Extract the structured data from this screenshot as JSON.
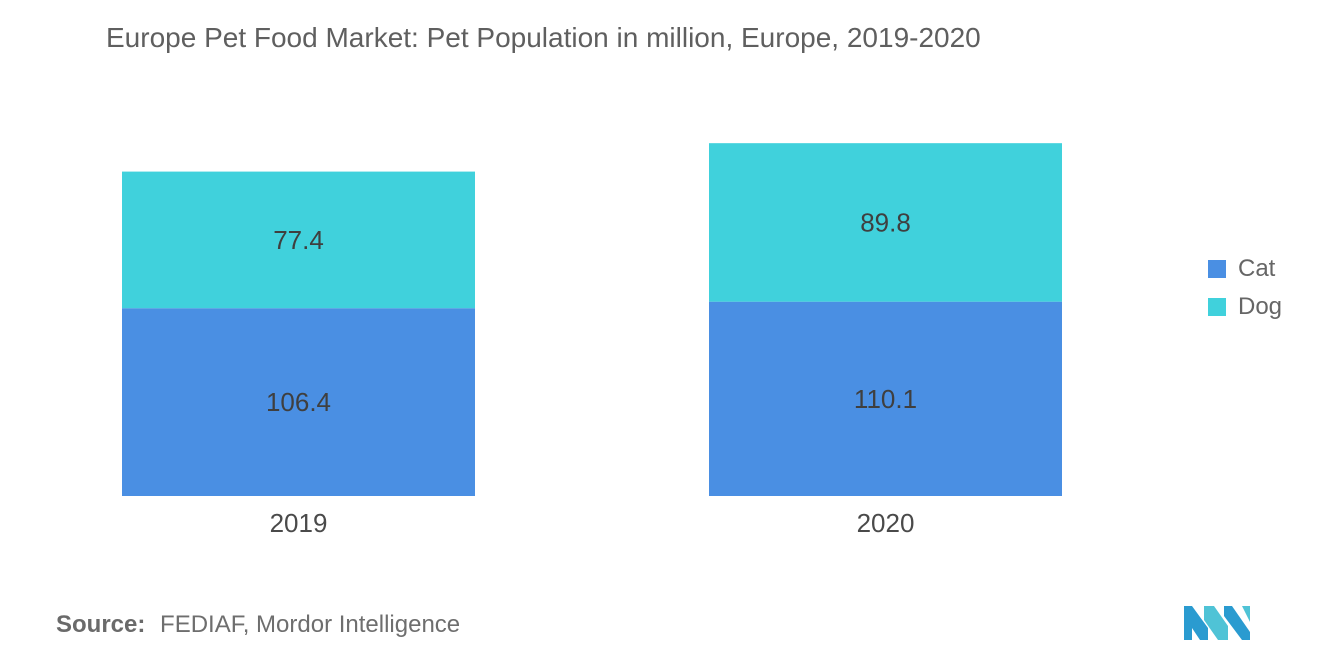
{
  "chart_data": {
    "type": "bar",
    "stacked": true,
    "title": "Europe Pet Food Market: Pet Population in million, Europe, 2019-2020",
    "categories": [
      "2019",
      "2020"
    ],
    "series": [
      {
        "name": "Cat",
        "values": [
          106.4,
          110.1
        ],
        "color": "#4a8fe3"
      },
      {
        "name": "Dog",
        "values": [
          77.4,
          89.8
        ],
        "color": "#40d1dc"
      }
    ],
    "ylim": [
      0,
      200
    ],
    "xlabel": "",
    "ylabel": "",
    "legend_position": "right",
    "grid": false
  },
  "source": {
    "label": "Source:",
    "text": "FEDIAF, Mordor Intelligence"
  },
  "logo": {
    "icon": "mordor-intelligence-logo-icon",
    "color": "#3aa5c8"
  }
}
